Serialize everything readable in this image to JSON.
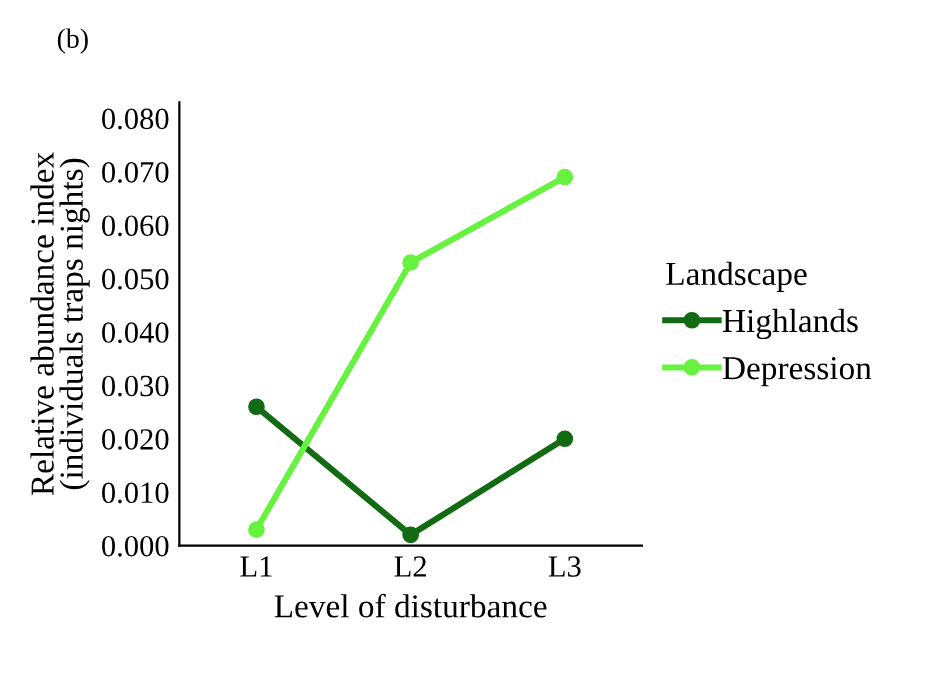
{
  "chart_data": {
    "type": "line",
    "title": "(b)",
    "xlabel": "Level of disturbance",
    "ylabel": "Relative abundance index\n(individuals traps nights)",
    "legend_title": "Landscape",
    "categories": [
      "L1",
      "L2",
      "L3"
    ],
    "series": [
      {
        "name": "Highlands",
        "color": "#126b12",
        "values": [
          0.026,
          0.002,
          0.02
        ]
      },
      {
        "name": "Depression",
        "color": "#66f23f",
        "values": [
          0.003,
          0.053,
          0.069
        ]
      }
    ],
    "ylim": [
      0,
      0.083
    ],
    "yticks": [
      {
        "value": 0,
        "label": "0.000"
      },
      {
        "value": 0.01,
        "label": "0.010"
      },
      {
        "value": 0.02,
        "label": "0.020"
      },
      {
        "value": 0.03,
        "label": "0.030"
      },
      {
        "value": 0.04,
        "label": "0.040"
      },
      {
        "value": 0.05,
        "label": "0.050"
      },
      {
        "value": 0.06,
        "label": "0.060"
      },
      {
        "value": 0.07,
        "label": "0.070"
      },
      {
        "value": 0.08,
        "label": "0.080"
      }
    ],
    "grid": false,
    "legend": "right",
    "marker": "circle",
    "line_style": "solid"
  }
}
